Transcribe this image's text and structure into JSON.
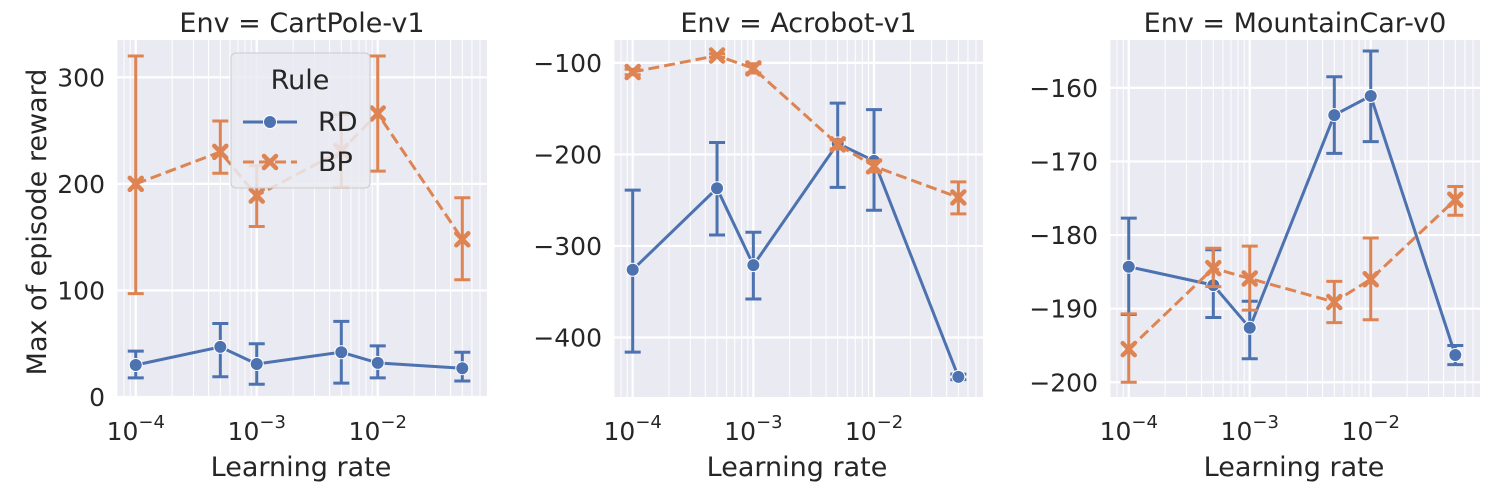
{
  "figure": {
    "ylabel": "Max of episode reward",
    "xlabel": "Learning rate",
    "legend": {
      "title": "Rule",
      "entries": [
        "RD",
        "BP"
      ]
    }
  },
  "colors": {
    "RD": "#4c72b0",
    "BP": "#dd8452",
    "panel_bg": "#eaeaf2",
    "grid": "#ffffff",
    "text": "#262626"
  },
  "chart_data": [
    {
      "type": "line",
      "title": "Env = CartPole-v1",
      "xscale": "log",
      "xlim": [
        7e-05,
        0.08
      ],
      "ylim": [
        0,
        335
      ],
      "yticks": [
        0,
        100,
        200,
        300
      ],
      "ytick_labels": [
        "0",
        "100",
        "200",
        "300"
      ],
      "xtick_labels": [
        {
          "base": "10",
          "exp": "−4"
        },
        {
          "base": "10",
          "exp": "−3"
        },
        {
          "base": "10",
          "exp": "−2"
        }
      ],
      "legend_location": "upper center",
      "series": [
        {
          "name": "RD",
          "marker": "circle",
          "linestyle": "solid",
          "x": [
            0.0001,
            0.0005,
            0.001,
            0.005,
            0.01,
            0.05
          ],
          "y": [
            30,
            47,
            31,
            42,
            32,
            27
          ],
          "err_low": [
            18,
            19,
            12,
            13,
            18,
            15
          ],
          "err_high": [
            43,
            69,
            50,
            71,
            48,
            42
          ]
        },
        {
          "name": "BP",
          "marker": "x",
          "linestyle": "dashed",
          "x": [
            0.0001,
            0.0005,
            0.001,
            0.005,
            0.01,
            0.05
          ],
          "y": [
            200,
            230,
            189,
            231,
            266,
            148
          ],
          "err_low": [
            97,
            210,
            160,
            197,
            212,
            110
          ],
          "err_high": [
            320,
            259,
            217,
            265,
            320,
            187
          ]
        }
      ]
    },
    {
      "type": "line",
      "title": "Env = Acrobot-v1",
      "xscale": "log",
      "xlim": [
        7e-05,
        0.08
      ],
      "ylim": [
        -465,
        -75
      ],
      "yticks": [
        -400,
        -300,
        -200,
        -100
      ],
      "ytick_labels": [
        "−400",
        "−300",
        "−200",
        "−100"
      ],
      "xtick_labels": [
        {
          "base": "10",
          "exp": "−4"
        },
        {
          "base": "10",
          "exp": "−3"
        },
        {
          "base": "10",
          "exp": "−2"
        }
      ],
      "series": [
        {
          "name": "RD",
          "marker": "circle",
          "linestyle": "solid",
          "x": [
            0.0001,
            0.0005,
            0.001,
            0.005,
            0.01,
            0.05
          ],
          "y": [
            -326,
            -237,
            -321,
            -188,
            -207,
            -443
          ],
          "err_low": [
            -416,
            -288,
            -358,
            -236,
            -261,
            -446
          ],
          "err_high": [
            -239,
            -187,
            -285,
            -144,
            -151,
            -440
          ]
        },
        {
          "name": "BP",
          "marker": "x",
          "linestyle": "dashed",
          "x": [
            0.0001,
            0.0005,
            0.001,
            0.005,
            0.01,
            0.05
          ],
          "y": [
            -110,
            -92,
            -106,
            -189,
            -213,
            -247
          ],
          "err_low": [
            -113,
            -94,
            -111,
            -194,
            -219,
            -265
          ],
          "err_high": [
            -107,
            -90,
            -101,
            -184,
            -207,
            -230
          ]
        }
      ]
    },
    {
      "type": "line",
      "title": "Env = MountainCar-v0",
      "xscale": "log",
      "xlim": [
        7e-05,
        0.08
      ],
      "ylim": [
        -202,
        -153.5
      ],
      "yticks": [
        -200,
        -190,
        -180,
        -170,
        -160
      ],
      "ytick_labels": [
        "−200",
        "−190",
        "−180",
        "−170",
        "−160"
      ],
      "xtick_labels": [
        {
          "base": "10",
          "exp": "−4"
        },
        {
          "base": "10",
          "exp": "−3"
        },
        {
          "base": "10",
          "exp": "−2"
        }
      ],
      "series": [
        {
          "name": "RD",
          "marker": "circle",
          "linestyle": "solid",
          "x": [
            0.0001,
            0.0005,
            0.001,
            0.005,
            0.01,
            0.05
          ],
          "y": [
            -184.3,
            -186.8,
            -192.6,
            -163.7,
            -161.1,
            -196.3
          ],
          "err_low": [
            -190.8,
            -191.2,
            -196.8,
            -168.9,
            -167.3,
            -197.6
          ],
          "err_high": [
            -177.7,
            -182.0,
            -189.0,
            -158.5,
            -155.0,
            -195.0
          ]
        },
        {
          "name": "BP",
          "marker": "x",
          "linestyle": "dashed",
          "x": [
            0.0001,
            0.0005,
            0.001,
            0.005,
            0.01,
            0.05
          ],
          "y": [
            -195.5,
            -184.5,
            -185.9,
            -189.1,
            -186.0,
            -175.2
          ],
          "err_low": [
            -200.0,
            -187.0,
            -190.2,
            -191.9,
            -191.5,
            -177.3
          ],
          "err_high": [
            -190.7,
            -181.8,
            -181.5,
            -186.3,
            -180.4,
            -173.4
          ]
        }
      ]
    }
  ]
}
